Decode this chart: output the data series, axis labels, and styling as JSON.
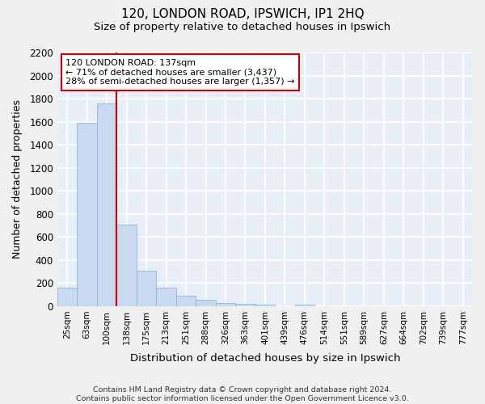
{
  "title_line1": "120, LONDON ROAD, IPSWICH, IP1 2HQ",
  "title_line2": "Size of property relative to detached houses in Ipswich",
  "xlabel": "Distribution of detached houses by size in Ipswich",
  "ylabel": "Number of detached properties",
  "categories": [
    "25sqm",
    "63sqm",
    "100sqm",
    "138sqm",
    "175sqm",
    "213sqm",
    "251sqm",
    "288sqm",
    "326sqm",
    "363sqm",
    "401sqm",
    "439sqm",
    "476sqm",
    "514sqm",
    "551sqm",
    "589sqm",
    "627sqm",
    "664sqm",
    "702sqm",
    "739sqm",
    "777sqm"
  ],
  "values": [
    160,
    1590,
    1760,
    710,
    310,
    160,
    90,
    55,
    30,
    20,
    15,
    0,
    15,
    0,
    0,
    0,
    0,
    0,
    0,
    0,
    0
  ],
  "bar_color": "#c8d9f0",
  "bar_edge_color": "#7fafd4",
  "background_color": "#e8eef8",
  "grid_color": "#ffffff",
  "vline_x_index": 3,
  "annotation_text_line1": "120 LONDON ROAD: 137sqm",
  "annotation_text_line2": "← 71% of detached houses are smaller (3,437)",
  "annotation_text_line3": "28% of semi-detached houses are larger (1,357) →",
  "annotation_box_color": "#ffffff",
  "annotation_box_edge_color": "#cc0000",
  "vline_color": "#cc0000",
  "footer_line1": "Contains HM Land Registry data © Crown copyright and database right 2024.",
  "footer_line2": "Contains public sector information licensed under the Open Government Licence v3.0.",
  "ylim": [
    0,
    2200
  ],
  "yticks": [
    0,
    200,
    400,
    600,
    800,
    1000,
    1200,
    1400,
    1600,
    1800,
    2000,
    2200
  ],
  "fig_bg": "#f0f0f0"
}
